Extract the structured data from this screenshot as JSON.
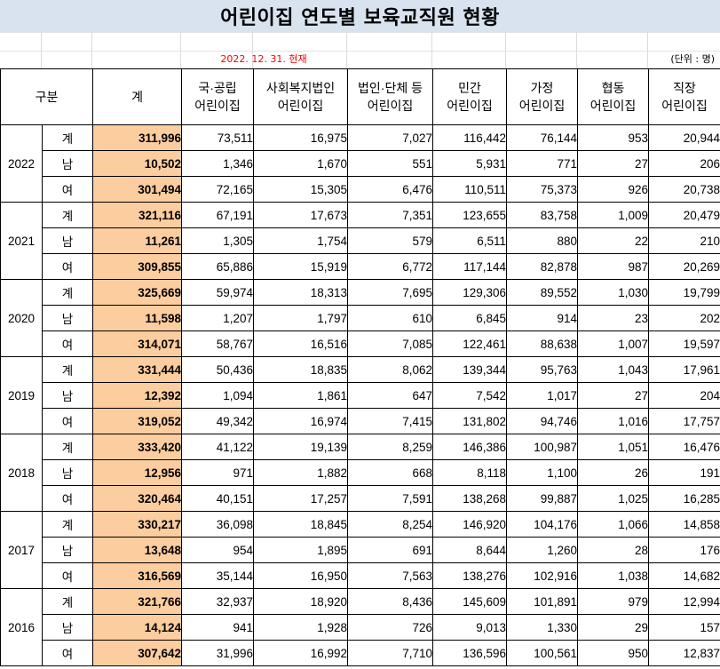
{
  "title": "어린이집 연도별 보육교직원 현황",
  "date_note": "2022. 12. 31. 현재",
  "unit_note": "(단위 : 명)",
  "header": {
    "category": "구분",
    "total": "계",
    "columns": [
      {
        "line1": "국·공립",
        "line2": "어린이집"
      },
      {
        "line1": "사회복지법인",
        "line2": "어린이집"
      },
      {
        "line1": "법인·단체 등",
        "line2": "어린이집"
      },
      {
        "line1": "민간",
        "line2": "어린이집"
      },
      {
        "line1": "가정",
        "line2": "어린이집"
      },
      {
        "line1": "협동",
        "line2": "어린이집"
      },
      {
        "line1": "직장",
        "line2": "어린이집"
      }
    ]
  },
  "years": [
    {
      "year": "2022",
      "rows": [
        {
          "kind": "계",
          "total": "311,996",
          "values": [
            "73,511",
            "16,975",
            "7,027",
            "116,442",
            "76,144",
            "953",
            "20,944"
          ]
        },
        {
          "kind": "남",
          "total": "10,502",
          "values": [
            "1,346",
            "1,670",
            "551",
            "5,931",
            "771",
            "27",
            "206"
          ]
        },
        {
          "kind": "여",
          "total": "301,494",
          "values": [
            "72,165",
            "15,305",
            "6,476",
            "110,511",
            "75,373",
            "926",
            "20,738"
          ]
        }
      ]
    },
    {
      "year": "2021",
      "rows": [
        {
          "kind": "계",
          "total": "321,116",
          "values": [
            "67,191",
            "17,673",
            "7,351",
            "123,655",
            "83,758",
            "1,009",
            "20,479"
          ]
        },
        {
          "kind": "남",
          "total": "11,261",
          "values": [
            "1,305",
            "1,754",
            "579",
            "6,511",
            "880",
            "22",
            "210"
          ]
        },
        {
          "kind": "여",
          "total": "309,855",
          "values": [
            "65,886",
            "15,919",
            "6,772",
            "117,144",
            "82,878",
            "987",
            "20,269"
          ]
        }
      ]
    },
    {
      "year": "2020",
      "rows": [
        {
          "kind": "계",
          "total": "325,669",
          "values": [
            "59,974",
            "18,313",
            "7,695",
            "129,306",
            "89,552",
            "1,030",
            "19,799"
          ]
        },
        {
          "kind": "남",
          "total": "11,598",
          "values": [
            "1,207",
            "1,797",
            "610",
            "6,845",
            "914",
            "23",
            "202"
          ]
        },
        {
          "kind": "여",
          "total": "314,071",
          "values": [
            "58,767",
            "16,516",
            "7,085",
            "122,461",
            "88,638",
            "1,007",
            "19,597"
          ]
        }
      ]
    },
    {
      "year": "2019",
      "rows": [
        {
          "kind": "계",
          "total": "331,444",
          "values": [
            "50,436",
            "18,835",
            "8,062",
            "139,344",
            "95,763",
            "1,043",
            "17,961"
          ]
        },
        {
          "kind": "남",
          "total": "12,392",
          "values": [
            "1,094",
            "1,861",
            "647",
            "7,542",
            "1,017",
            "27",
            "204"
          ]
        },
        {
          "kind": "여",
          "total": "319,052",
          "values": [
            "49,342",
            "16,974",
            "7,415",
            "131,802",
            "94,746",
            "1,016",
            "17,757"
          ]
        }
      ]
    },
    {
      "year": "2018",
      "rows": [
        {
          "kind": "계",
          "total": "333,420",
          "values": [
            "41,122",
            "19,139",
            "8,259",
            "146,386",
            "100,987",
            "1,051",
            "16,476"
          ]
        },
        {
          "kind": "남",
          "total": "12,956",
          "values": [
            "971",
            "1,882",
            "668",
            "8,118",
            "1,100",
            "26",
            "191"
          ]
        },
        {
          "kind": "여",
          "total": "320,464",
          "values": [
            "40,151",
            "17,257",
            "7,591",
            "138,268",
            "99,887",
            "1,025",
            "16,285"
          ]
        }
      ]
    },
    {
      "year": "2017",
      "rows": [
        {
          "kind": "계",
          "total": "330,217",
          "values": [
            "36,098",
            "18,845",
            "8,254",
            "146,920",
            "104,176",
            "1,066",
            "14,858"
          ]
        },
        {
          "kind": "남",
          "total": "13,648",
          "values": [
            "954",
            "1,895",
            "691",
            "8,644",
            "1,260",
            "28",
            "176"
          ]
        },
        {
          "kind": "여",
          "total": "316,569",
          "values": [
            "35,144",
            "16,950",
            "7,563",
            "138,276",
            "102,916",
            "1,038",
            "14,682"
          ]
        }
      ]
    },
    {
      "year": "2016",
      "rows": [
        {
          "kind": "계",
          "total": "321,766",
          "values": [
            "32,937",
            "18,920",
            "8,436",
            "145,609",
            "101,891",
            "979",
            "12,994"
          ]
        },
        {
          "kind": "남",
          "total": "14,124",
          "values": [
            "941",
            "1,928",
            "726",
            "9,013",
            "1,330",
            "29",
            "157"
          ]
        },
        {
          "kind": "여",
          "total": "307,642",
          "values": [
            "31,996",
            "16,992",
            "7,710",
            "136,596",
            "100,561",
            "950",
            "12,837"
          ]
        }
      ]
    }
  ],
  "colors": {
    "title_bg": "#d9e2ef",
    "total_bg": "#fbcd9f",
    "date_text": "#ff0000"
  }
}
